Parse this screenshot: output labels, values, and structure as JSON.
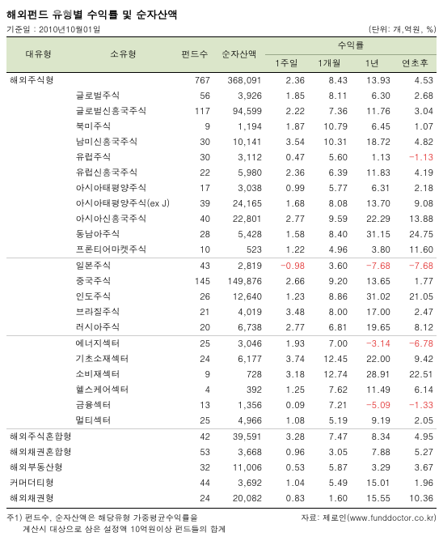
{
  "title": "해외펀드 유형별 수익률 및 순자산액",
  "base_date_label": "기준일 : 2010년10월01일",
  "unit_label": "(단위: 개,억원, %)",
  "head": {
    "major": "대유형",
    "sub": "소유형",
    "count": "펀드수",
    "nav": "순자산액",
    "ret_group": "수익률",
    "w1": "1주일",
    "m1": "1개월",
    "y1": "1년",
    "ytd": "연초후"
  },
  "rows": [
    {
      "major": "해외주식형",
      "sub": "",
      "cnt": "767",
      "nav": "368,091",
      "w1": "2.36",
      "m1": "8.43",
      "y1": "13.93",
      "ytd": "4.53",
      "sep": false
    },
    {
      "major": "",
      "sub": "글로벌주식",
      "cnt": "56",
      "nav": "3,926",
      "w1": "1.85",
      "m1": "8.11",
      "y1": "6.30",
      "ytd": "2.68"
    },
    {
      "major": "",
      "sub": "글로벌신흥국주식",
      "cnt": "117",
      "nav": "94,599",
      "w1": "2.22",
      "m1": "7.36",
      "y1": "11.76",
      "ytd": "3.04"
    },
    {
      "major": "",
      "sub": "북미주식",
      "cnt": "9",
      "nav": "1,194",
      "w1": "1.87",
      "m1": "10.79",
      "y1": "6.45",
      "ytd": "1.07"
    },
    {
      "major": "",
      "sub": "남미신흥국주식",
      "cnt": "30",
      "nav": "10,141",
      "w1": "3.54",
      "m1": "10.31",
      "y1": "18.72",
      "ytd": "4.82"
    },
    {
      "major": "",
      "sub": "유럽주식",
      "cnt": "30",
      "nav": "3,112",
      "w1": "0.47",
      "m1": "5.60",
      "y1": "1.13",
      "ytd": "-1.13",
      "neg": [
        "ytd"
      ]
    },
    {
      "major": "",
      "sub": "유럽신흥국주식",
      "cnt": "22",
      "nav": "5,980",
      "w1": "2.36",
      "m1": "6.39",
      "y1": "11.83",
      "ytd": "4.19"
    },
    {
      "major": "",
      "sub": "아시아태평양주식",
      "cnt": "17",
      "nav": "3,038",
      "w1": "0.99",
      "m1": "5.77",
      "y1": "6.31",
      "ytd": "2.18"
    },
    {
      "major": "",
      "sub": "아시아태평양주식(ex J)",
      "cnt": "39",
      "nav": "24,165",
      "w1": "1.68",
      "m1": "8.08",
      "y1": "13.70",
      "ytd": "9.08"
    },
    {
      "major": "",
      "sub": "아시아신흥국주식",
      "cnt": "40",
      "nav": "22,801",
      "w1": "2.77",
      "m1": "9.59",
      "y1": "22.29",
      "ytd": "13.88"
    },
    {
      "major": "",
      "sub": "동남아주식",
      "cnt": "28",
      "nav": "5,428",
      "w1": "1.58",
      "m1": "8.40",
      "y1": "31.15",
      "ytd": "24.75"
    },
    {
      "major": "",
      "sub": "프론티어마켓주식",
      "cnt": "10",
      "nav": "523",
      "w1": "1.22",
      "m1": "4.96",
      "y1": "3.80",
      "ytd": "11.60"
    },
    {
      "major": "",
      "sub": "일본주식",
      "cnt": "43",
      "nav": "2,819",
      "w1": "-0.98",
      "m1": "3.60",
      "y1": "-7.68",
      "ytd": "-7.68",
      "sep": true,
      "neg": [
        "w1",
        "y1",
        "ytd"
      ]
    },
    {
      "major": "",
      "sub": "중국주식",
      "cnt": "145",
      "nav": "149,876",
      "w1": "2.66",
      "m1": "9.20",
      "y1": "13.65",
      "ytd": "1.77"
    },
    {
      "major": "",
      "sub": "인도주식",
      "cnt": "26",
      "nav": "12,640",
      "w1": "1.23",
      "m1": "8.86",
      "y1": "31.02",
      "ytd": "21.05"
    },
    {
      "major": "",
      "sub": "브라질주식",
      "cnt": "21",
      "nav": "4,019",
      "w1": "3.48",
      "m1": "8.00",
      "y1": "17.00",
      "ytd": "2.47"
    },
    {
      "major": "",
      "sub": "러시아주식",
      "cnt": "20",
      "nav": "6,738",
      "w1": "2.77",
      "m1": "6.81",
      "y1": "19.65",
      "ytd": "8.12"
    },
    {
      "major": "",
      "sub": "에너지섹터",
      "cnt": "25",
      "nav": "3,046",
      "w1": "1.93",
      "m1": "7.00",
      "y1": "-3.14",
      "ytd": "-6.78",
      "sep": true,
      "neg": [
        "y1",
        "ytd"
      ]
    },
    {
      "major": "",
      "sub": "기초소재섹터",
      "cnt": "24",
      "nav": "6,177",
      "w1": "3.74",
      "m1": "12.45",
      "y1": "22.00",
      "ytd": "9.42"
    },
    {
      "major": "",
      "sub": "소비재섹터",
      "cnt": "9",
      "nav": "728",
      "w1": "3.18",
      "m1": "12.74",
      "y1": "28.91",
      "ytd": "22.51"
    },
    {
      "major": "",
      "sub": "헬스케어섹터",
      "cnt": "4",
      "nav": "392",
      "w1": "1.25",
      "m1": "7.62",
      "y1": "11.49",
      "ytd": "6.14"
    },
    {
      "major": "",
      "sub": "금융섹터",
      "cnt": "13",
      "nav": "1,356",
      "w1": "0.09",
      "m1": "7.21",
      "y1": "-5.09",
      "ytd": "-1.33",
      "neg": [
        "y1",
        "ytd"
      ]
    },
    {
      "major": "",
      "sub": "멀티섹터",
      "cnt": "25",
      "nav": "4,966",
      "w1": "1.08",
      "m1": "5.19",
      "y1": "9.19",
      "ytd": "2.05"
    },
    {
      "major": "해외주식혼합형",
      "sub": "",
      "cnt": "42",
      "nav": "39,591",
      "w1": "3.28",
      "m1": "7.47",
      "y1": "8.34",
      "ytd": "4.95",
      "sep": true
    },
    {
      "major": "해외채권혼합형",
      "sub": "",
      "cnt": "53",
      "nav": "3,668",
      "w1": "0.96",
      "m1": "3.05",
      "y1": "7.88",
      "ytd": "5.27"
    },
    {
      "major": "해외부동산형",
      "sub": "",
      "cnt": "32",
      "nav": "11,006",
      "w1": "0.53",
      "m1": "5.87",
      "y1": "3.29",
      "ytd": "3.67"
    },
    {
      "major": "커머더티형",
      "sub": "",
      "cnt": "44",
      "nav": "3,692",
      "w1": "1.04",
      "m1": "5.49",
      "y1": "15.01",
      "ytd": "1.96"
    },
    {
      "major": "해외채권형",
      "sub": "",
      "cnt": "24",
      "nav": "20,082",
      "w1": "0.83",
      "m1": "1.60",
      "y1": "15.55",
      "ytd": "10.36"
    }
  ],
  "footnote_l1": "주1) 펀드수, 순자산액은 해당유형 가중평균수익률을",
  "footnote_l2": "계산시 대상으로 삼은 설정액 10억원이상 펀드들의 합계",
  "source": "자료: 제로인(www.funddoctor.co.kr)"
}
